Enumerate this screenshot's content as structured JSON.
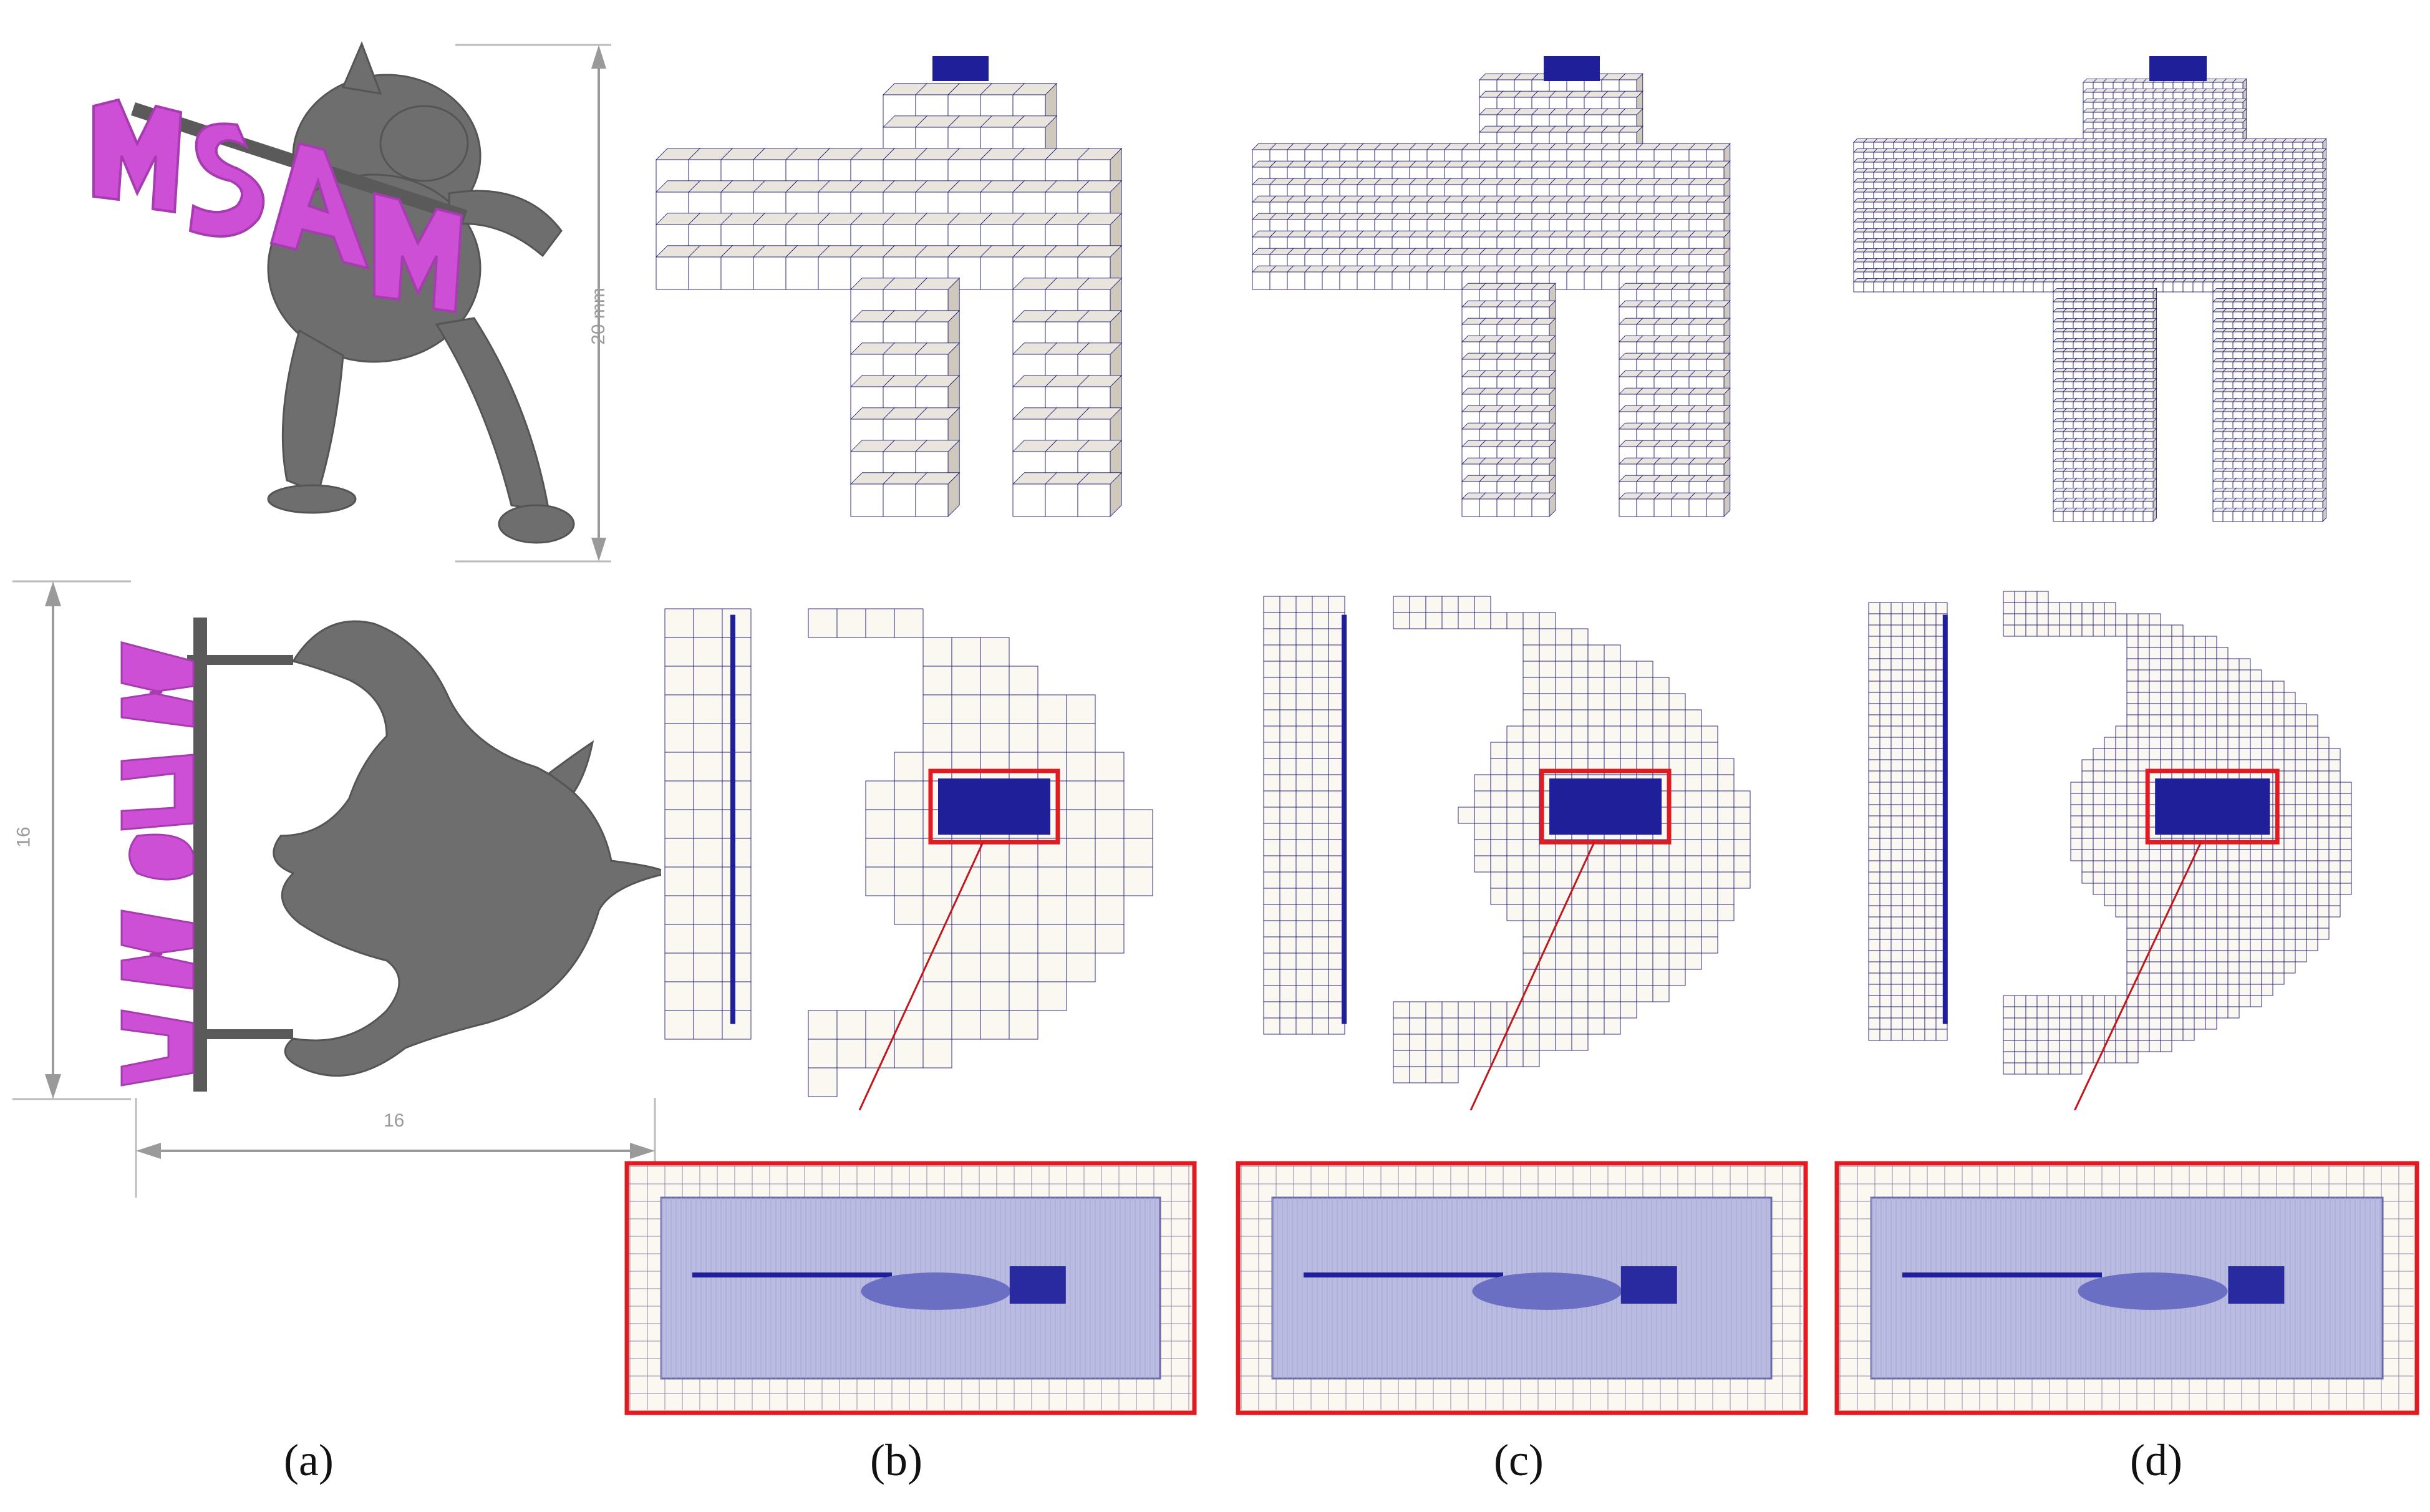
{
  "figure": {
    "panels": [
      {
        "id": "a",
        "label": "(a)"
      },
      {
        "id": "b",
        "label": "(b)"
      },
      {
        "id": "c",
        "label": "(c)"
      },
      {
        "id": "d",
        "label": "(d)"
      }
    ],
    "dimensions": {
      "height_3d": "20 mm",
      "top_view_height": "16",
      "top_view_width": "16"
    },
    "colors": {
      "armadillo": "#6e6e6e",
      "letters": "#cc4fd6",
      "cube_face": "#ffffff",
      "cube_side": "#cfc8bd",
      "grid_line": "#1a1a7a",
      "refined": "#1f1f9a",
      "zoom_frame": "#e11b22",
      "dim_line": "#9a9a9a"
    }
  }
}
